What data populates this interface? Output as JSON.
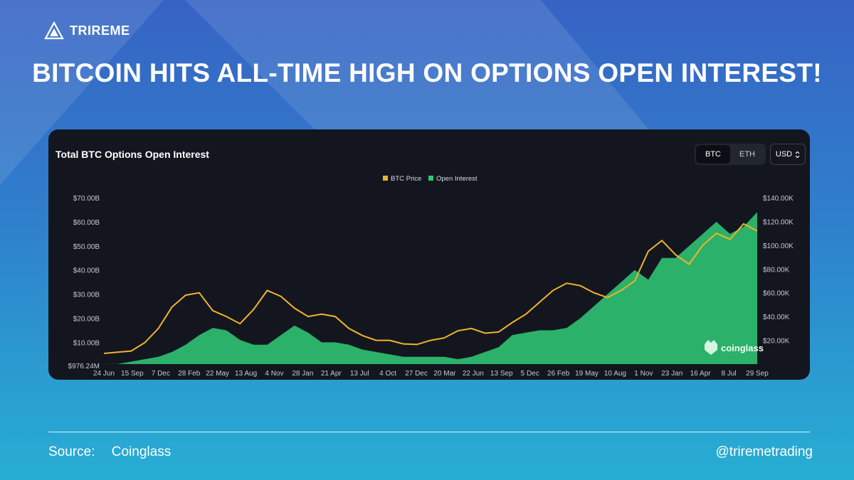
{
  "brand": {
    "name": "TRIREME",
    "logo_icon": "trireme-logo-icon"
  },
  "headline": "BITCOIN HITS ALL-TIME HIGH ON OPTIONS OPEN INTEREST!",
  "card": {
    "title": "Total BTC Options Open Interest",
    "toggle": [
      "BTC",
      "ETH"
    ],
    "active_toggle": "BTC",
    "currency": "USD",
    "watermark": "coinglass"
  },
  "footer": {
    "source_label": "Source:",
    "source_value": "Coinglass",
    "handle": "@triremetrading"
  },
  "colors": {
    "price": "#f0b429",
    "open_interest": "#2fc774",
    "background": "#13161e"
  },
  "chart_data": {
    "type": "area",
    "legend": "top-center",
    "grid": false,
    "x_ticks": [
      "24 Jun",
      "15 Sep",
      "7 Dec",
      "28 Feb",
      "22 May",
      "13 Aug",
      "4 Nov",
      "28 Jan",
      "21 Apr",
      "13 Jul",
      "4 Oct",
      "27 Dec",
      "20 Mar",
      "22 Jun",
      "13 Sep",
      "5 Dec",
      "26 Feb",
      "19 May",
      "10 Aug",
      "1 Nov",
      "23 Jan",
      "16 Apr",
      "8 Jul",
      "29 Sep"
    ],
    "left_axis": {
      "ticks": [
        "$976.24M",
        "$10.00B",
        "$20.00B",
        "$30.00B",
        "$40.00B",
        "$50.00B",
        "$60.00B",
        "$70.00B"
      ],
      "range": [
        0.97624,
        70
      ]
    },
    "right_axis": {
      "ticks": [
        "$20.00K",
        "$40.00K",
        "$60.00K",
        "$80.00K",
        "$100.00K",
        "$120.00K",
        "$140.00K"
      ],
      "range": [
        0,
        140000
      ]
    },
    "series": [
      {
        "name": "Open Interest",
        "axis": "left",
        "color": "#2fc774",
        "values": [
          1,
          1,
          2,
          3,
          4,
          6,
          9,
          13,
          16,
          15,
          11,
          9,
          9,
          13,
          17,
          14,
          10,
          10,
          9,
          7,
          6,
          5,
          4,
          4,
          4,
          4,
          3,
          4,
          6,
          8,
          13,
          14,
          15,
          15,
          16,
          20,
          25,
          30,
          35,
          40,
          36,
          45,
          45,
          50,
          55,
          60,
          55,
          58,
          64
        ]
      },
      {
        "name": "BTC Price",
        "axis": "right",
        "color": "#f0b429",
        "values": [
          9000,
          10000,
          11000,
          18000,
          30000,
          48000,
          58000,
          60000,
          45000,
          40000,
          34000,
          46000,
          62000,
          57000,
          47000,
          40000,
          42000,
          40000,
          30000,
          24000,
          20000,
          20000,
          17000,
          16500,
          20000,
          22000,
          28000,
          30000,
          26000,
          27000,
          35000,
          42000,
          52000,
          62000,
          68000,
          66000,
          60000,
          56000,
          62000,
          70000,
          95000,
          104000,
          92000,
          84000,
          100000,
          110000,
          105000,
          118000,
          112000
        ]
      }
    ]
  }
}
